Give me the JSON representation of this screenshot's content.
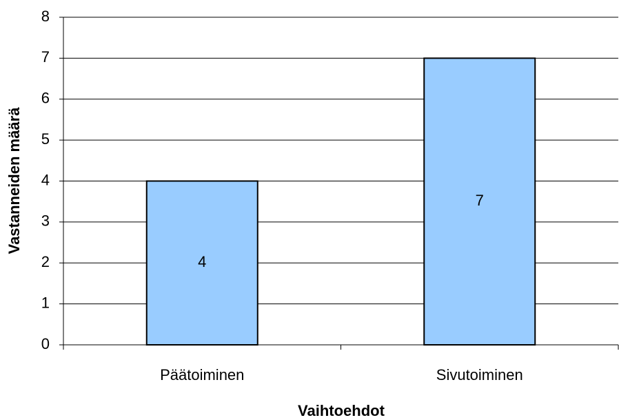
{
  "chart_data": {
    "type": "bar",
    "xlabel": "Vaihtoehdot",
    "ylabel": "Vastanneiden määrä",
    "categories": [
      "Päätoiminen",
      "Sivutoiminen"
    ],
    "values": [
      4,
      7
    ],
    "color": "#99ccff",
    "ylim": [
      0,
      8
    ],
    "yticks": [
      0,
      1,
      2,
      3,
      4,
      5,
      6,
      7,
      8
    ],
    "grid": true,
    "data_labels": true
  }
}
